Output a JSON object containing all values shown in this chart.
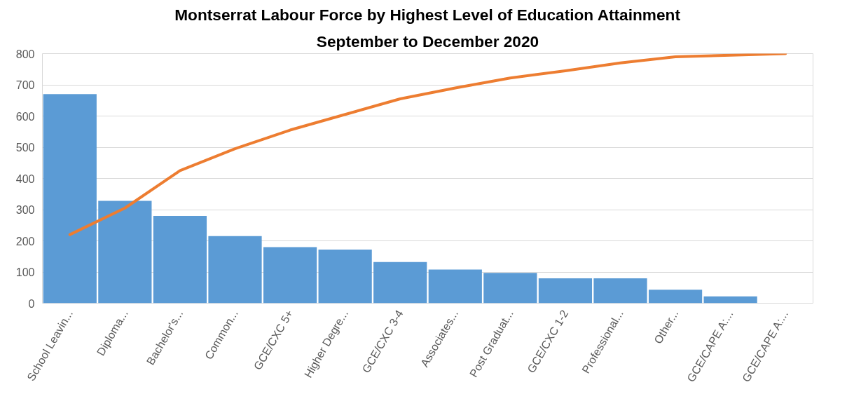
{
  "chart_data": {
    "type": "bar",
    "title": "Montserrat Labour Force by Highest Level of Education Attainment",
    "subtitle": "September to December 2020",
    "categories": [
      "School Leavin...",
      "Diploma...",
      "Bachelor's...",
      "Common...",
      "GCE/CXC 5+",
      "Higher Degre...",
      "GCE/CXC 3-4",
      "Associates...",
      "Post Graduat...",
      "GCE/CXC 1-2",
      "Professional...",
      "Other...",
      "GCE/CAPE A:...",
      "GCE/CAPE A:..."
    ],
    "series": [
      {
        "color": "#5b9bd5",
        "values": [
          670,
          328,
          280,
          215,
          180,
          172,
          132,
          108,
          97,
          80,
          80,
          43,
          22,
          0
        ]
      },
      {
        "type": "line",
        "color": "#ed7d31",
        "values": [
          220,
          305,
          425,
          495,
          555,
          605,
          655,
          690,
          722,
          745,
          770,
          790,
          795,
          800
        ]
      }
    ],
    "ylim": [
      0,
      800
    ],
    "yticks": [
      0,
      100,
      200,
      300,
      400,
      500,
      600,
      700,
      800
    ],
    "grid": "y"
  }
}
